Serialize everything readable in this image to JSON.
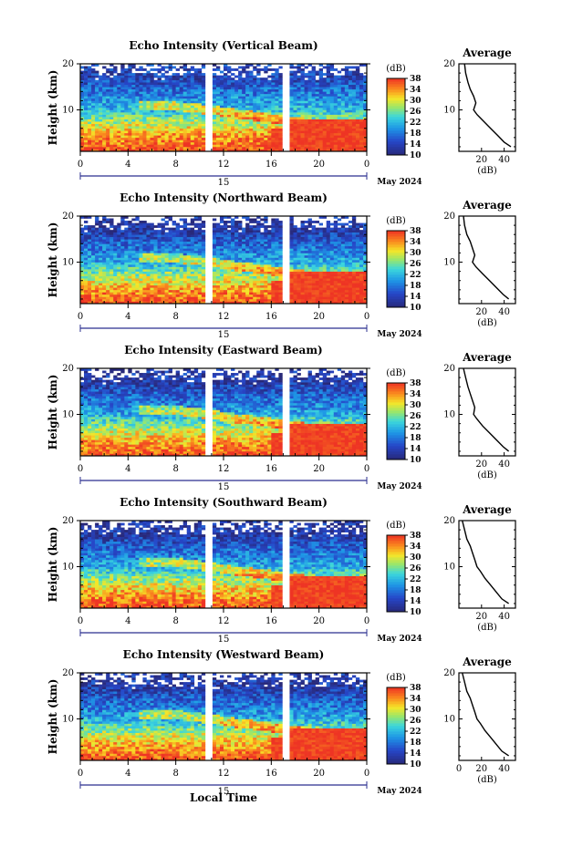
{
  "chart_data": [
    {
      "type": "heatmap",
      "title": "Echo Intensity (Vertical Beam)",
      "ylabel": "Height (km)",
      "yticks": [
        "20",
        "10"
      ],
      "xticks": [
        "0",
        "4",
        "8",
        "12",
        "16",
        "20",
        "0"
      ],
      "xlim": [
        0,
        24
      ],
      "ylim": [
        1,
        20
      ],
      "date_day": "15",
      "date_label": "May 2024",
      "colorbar_unit": "(dB)",
      "colorbar_ticks": [
        "38",
        "34",
        "30",
        "26",
        "22",
        "18",
        "14",
        "10"
      ],
      "clim": [
        10,
        38
      ],
      "data_gap_hours": [
        16.8,
        17.6
      ],
      "layer_dB": [
        {
          "h": 2,
          "v": 36
        },
        {
          "h": 5,
          "v": 33
        },
        {
          "h": 8,
          "v": 27
        },
        {
          "h": 10,
          "v": 22
        },
        {
          "h": 13,
          "v": 19
        },
        {
          "h": 17,
          "v": 14
        }
      ],
      "profile": {
        "title": "Average",
        "xlabel": "(dB)",
        "xticks": [
          "20",
          "40"
        ],
        "yticks": [
          "20",
          "10"
        ],
        "x": [
          5,
          6,
          8,
          10,
          13,
          15,
          13,
          16,
          22,
          28,
          34,
          40,
          46
        ],
        "y": [
          20,
          18,
          16,
          14.5,
          13,
          11.5,
          10,
          9,
          7.5,
          6,
          4.5,
          3,
          2
        ]
      }
    },
    {
      "type": "heatmap",
      "title": "Echo Intensity (Northward Beam)",
      "ylabel": "Height (km)",
      "yticks": [
        "20",
        "10"
      ],
      "xticks": [
        "0",
        "4",
        "8",
        "12",
        "16",
        "20",
        "0"
      ],
      "xlim": [
        0,
        24
      ],
      "ylim": [
        1,
        20
      ],
      "date_day": "15",
      "date_label": "May 2024",
      "colorbar_unit": "(dB)",
      "colorbar_ticks": [
        "38",
        "34",
        "30",
        "26",
        "22",
        "18",
        "14",
        "10"
      ],
      "clim": [
        10,
        38
      ],
      "data_gap_hours": [
        16.8,
        17.6
      ],
      "layer_dB": [
        {
          "h": 2,
          "v": 36
        },
        {
          "h": 5,
          "v": 32
        },
        {
          "h": 8,
          "v": 26
        },
        {
          "h": 10,
          "v": 21
        },
        {
          "h": 13,
          "v": 18
        },
        {
          "h": 17,
          "v": 13
        }
      ],
      "profile": {
        "title": "Average",
        "xlabel": "(dB)",
        "xticks": [
          "20",
          "40"
        ],
        "yticks": [
          "20",
          "10"
        ],
        "x": [
          4,
          5,
          7,
          10,
          12,
          14,
          12,
          15,
          21,
          27,
          33,
          39,
          44
        ],
        "y": [
          20,
          18,
          16,
          14.5,
          13,
          11.5,
          10,
          9,
          7.5,
          6,
          4.5,
          3,
          2
        ]
      }
    },
    {
      "type": "heatmap",
      "title": "Echo Intensity (Eastward Beam)",
      "ylabel": "Height (km)",
      "yticks": [
        "20",
        "10"
      ],
      "xticks": [
        "0",
        "4",
        "8",
        "12",
        "16",
        "20",
        "0"
      ],
      "xlim": [
        0,
        24
      ],
      "ylim": [
        1,
        20
      ],
      "date_day": "15",
      "date_label": "May 2024",
      "colorbar_unit": "(dB)",
      "colorbar_ticks": [
        "38",
        "34",
        "30",
        "26",
        "22",
        "18",
        "14",
        "10"
      ],
      "clim": [
        10,
        38
      ],
      "data_gap_hours": [
        16.8,
        17.6
      ],
      "layer_dB": [
        {
          "h": 2,
          "v": 36
        },
        {
          "h": 5,
          "v": 32
        },
        {
          "h": 8,
          "v": 26
        },
        {
          "h": 10,
          "v": 21
        },
        {
          "h": 13,
          "v": 18
        },
        {
          "h": 17,
          "v": 13
        }
      ],
      "profile": {
        "title": "Average",
        "xlabel": "(dB)",
        "xticks": [
          "20",
          "40"
        ],
        "yticks": [
          "20",
          "10"
        ],
        "x": [
          4,
          6,
          8,
          10,
          12,
          14,
          13,
          16,
          21,
          27,
          33,
          39,
          44
        ],
        "y": [
          20,
          18,
          16,
          14.5,
          13,
          11.5,
          10,
          9,
          7.5,
          6,
          4.5,
          3,
          2
        ]
      }
    },
    {
      "type": "heatmap",
      "title": "Echo Intensity (Southward Beam)",
      "ylabel": "Height (km)",
      "yticks": [
        "20",
        "10"
      ],
      "xticks": [
        "0",
        "4",
        "8",
        "12",
        "16",
        "20",
        "0"
      ],
      "xlim": [
        0,
        24
      ],
      "ylim": [
        1,
        20
      ],
      "date_day": "15",
      "date_label": "May 2024",
      "colorbar_unit": "(dB)",
      "colorbar_ticks": [
        "38",
        "34",
        "30",
        "26",
        "22",
        "18",
        "14",
        "10"
      ],
      "clim": [
        10,
        38
      ],
      "data_gap_hours": [
        16.8,
        17.6
      ],
      "layer_dB": [
        {
          "h": 2,
          "v": 36
        },
        {
          "h": 5,
          "v": 32
        },
        {
          "h": 8,
          "v": 26
        },
        {
          "h": 10,
          "v": 21
        },
        {
          "h": 13,
          "v": 18
        },
        {
          "h": 17,
          "v": 13
        }
      ],
      "profile": {
        "title": "Average",
        "xlabel": "(dB)",
        "xticks": [
          "20",
          "40"
        ],
        "yticks": [
          "20",
          "10"
        ],
        "x": [
          3,
          5,
          7,
          10,
          12,
          14,
          16,
          19,
          23,
          28,
          33,
          38,
          44
        ],
        "y": [
          20,
          18,
          16,
          14.5,
          13,
          11.5,
          10,
          9,
          7.5,
          6,
          4.5,
          3,
          2
        ]
      }
    },
    {
      "type": "heatmap",
      "title": "Echo Intensity (Westward Beam)",
      "ylabel": "Height (km)",
      "yticks": [
        "20",
        "10"
      ],
      "xticks": [
        "0",
        "4",
        "8",
        "12",
        "16",
        "20",
        "0"
      ],
      "xlim": [
        0,
        24
      ],
      "ylim": [
        1,
        20
      ],
      "date_day": "15",
      "date_label": "May 2024",
      "colorbar_unit": "(dB)",
      "colorbar_ticks": [
        "38",
        "34",
        "30",
        "26",
        "22",
        "18",
        "14",
        "10"
      ],
      "clim": [
        10,
        38
      ],
      "data_gap_hours": [
        16.8,
        17.6
      ],
      "layer_dB": [
        {
          "h": 2,
          "v": 36
        },
        {
          "h": 5,
          "v": 32
        },
        {
          "h": 8,
          "v": 26
        },
        {
          "h": 10,
          "v": 21
        },
        {
          "h": 13,
          "v": 18
        },
        {
          "h": 17,
          "v": 13
        }
      ],
      "profile": {
        "title": "Average",
        "xlabel": "(dB)",
        "xticks": [
          "0",
          "20",
          "40"
        ],
        "yticks": [
          "20",
          "10"
        ],
        "x": [
          3,
          5,
          7,
          10,
          12,
          14,
          16,
          19,
          23,
          28,
          33,
          38,
          44
        ],
        "y": [
          20,
          18,
          16,
          14.5,
          13,
          11.5,
          10,
          9,
          7.5,
          6,
          4.5,
          3,
          2
        ]
      }
    }
  ],
  "common": {
    "xlabel": "Local Time"
  },
  "colors": {
    "low": "#2b2f8f",
    "mid": "#1fa7e0",
    "high": "#ef3a2c"
  }
}
